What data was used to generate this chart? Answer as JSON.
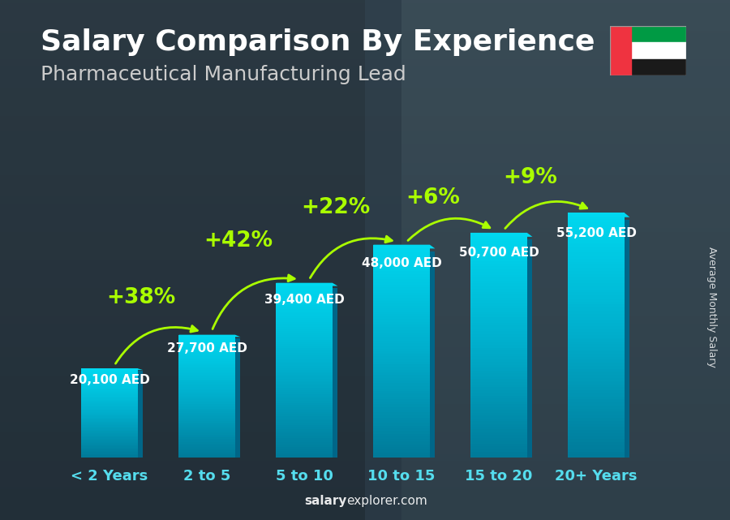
{
  "title": "Salary Comparison By Experience",
  "subtitle": "Pharmaceutical Manufacturing Lead",
  "categories": [
    "< 2 Years",
    "2 to 5",
    "5 to 10",
    "10 to 15",
    "15 to 20",
    "20+ Years"
  ],
  "values": [
    20100,
    27700,
    39400,
    48000,
    50700,
    55200
  ],
  "value_labels": [
    "20,100 AED",
    "27,700 AED",
    "39,400 AED",
    "48,000 AED",
    "50,700 AED",
    "55,200 AED"
  ],
  "pct_labels": [
    "+38%",
    "+42%",
    "+22%",
    "+6%",
    "+9%"
  ],
  "bar_color_top": "#00D8F0",
  "bar_color_mid": "#00AECC",
  "bar_color_bot": "#007A99",
  "bar_side_color": "#006688",
  "pct_color": "#AAFF00",
  "text_color_white": "#FFFFFF",
  "text_color_cyan": "#55DDEE",
  "ylabel": "Average Monthly Salary",
  "watermark_bold": "salary",
  "watermark_normal": "explorer.com",
  "bg_top": "#3a4a52",
  "bg_bot": "#2a3840",
  "ylim": [
    0,
    68000
  ],
  "title_fontsize": 26,
  "subtitle_fontsize": 18,
  "val_label_fontsize": 11,
  "pct_fontsize": 19,
  "xtick_fontsize": 13,
  "ylabel_fontsize": 9,
  "watermark_fontsize": 11,
  "bar_width": 0.58,
  "n_bars": 6,
  "arrow_rad": -0.38,
  "arc_y_offsets": [
    4500,
    5500,
    4500,
    4000,
    4000
  ],
  "pct_x_offsets": [
    -0.18,
    -0.18,
    -0.18,
    -0.18,
    -0.18
  ],
  "pct_y_extra": [
    1500,
    1500,
    1500,
    1500,
    1500
  ]
}
